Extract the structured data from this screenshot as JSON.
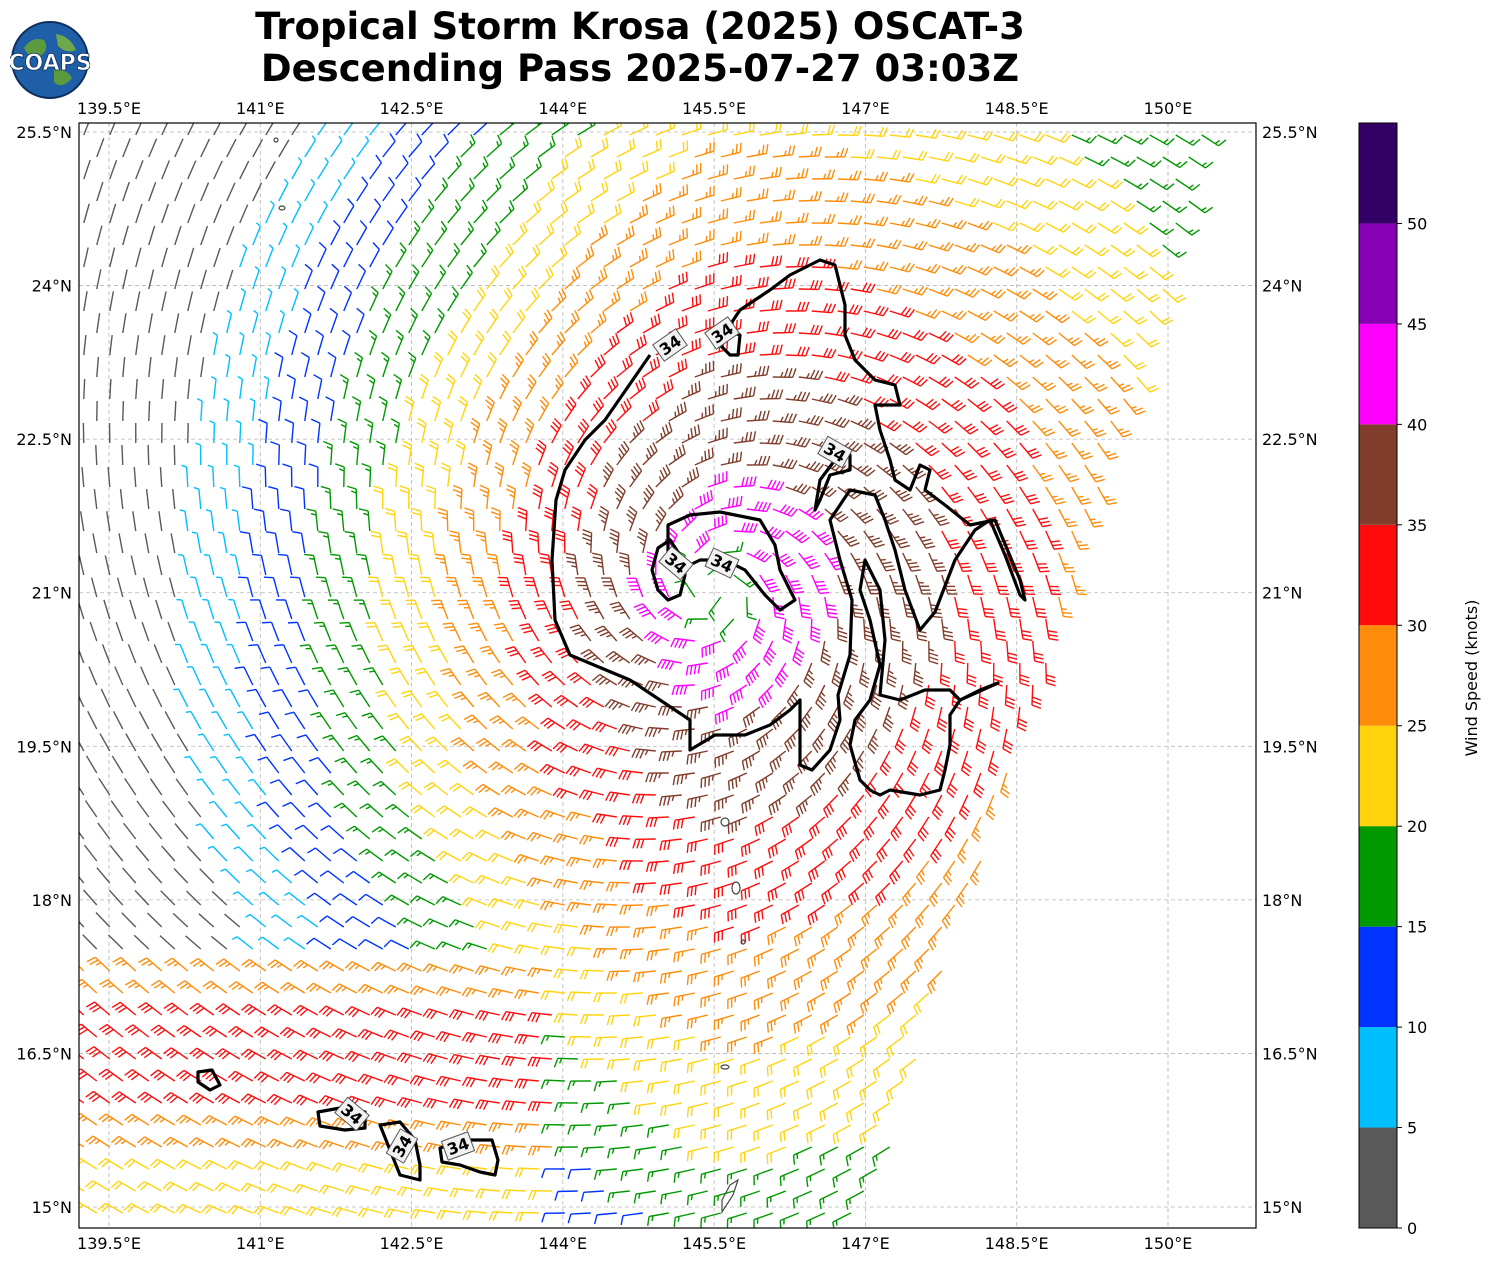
{
  "title": {
    "line1": "Tropical Storm Krosa (2025) OSCAT-3",
    "line2": "Descending Pass 2025-07-27 03:03Z"
  },
  "logo": {
    "text": "COAPS",
    "icon": "globe-icon"
  },
  "map": {
    "lon_ticks": [
      "139.5°E",
      "141°E",
      "142.5°E",
      "144°E",
      "145.5°E",
      "147°E",
      "148.5°E",
      "150°E"
    ],
    "lat_ticks": [
      "25.5°N",
      "24°N",
      "22.5°N",
      "21°N",
      "19.5°N",
      "18°N",
      "16.5°N",
      "15°N"
    ],
    "lon_range": [
      139.2,
      150.7
    ],
    "lat_range": [
      14.8,
      25.6
    ],
    "contour_label": "34",
    "contour_level_kt": 34,
    "gridlines": true
  },
  "colorbar": {
    "label": "Wind Speed (knots)",
    "ticks": [
      "0",
      "5",
      "10",
      "15",
      "20",
      "25",
      "30",
      "35",
      "40",
      "45",
      "50"
    ],
    "bins": [
      {
        "min": 0,
        "max": 5,
        "color": "#595959"
      },
      {
        "min": 5,
        "max": 10,
        "color": "#00bfff"
      },
      {
        "min": 10,
        "max": 15,
        "color": "#0033ff"
      },
      {
        "min": 15,
        "max": 20,
        "color": "#009900"
      },
      {
        "min": 20,
        "max": 25,
        "color": "#ffd40f"
      },
      {
        "min": 25,
        "max": 30,
        "color": "#ff8c0a"
      },
      {
        "min": 30,
        "max": 35,
        "color": "#ff0d0d"
      },
      {
        "min": 35,
        "max": 40,
        "color": "#803d2b"
      },
      {
        "min": 40,
        "max": 45,
        "color": "#ff00ff"
      },
      {
        "min": 45,
        "max": 50,
        "color": "#8800b3"
      },
      {
        "min": 50,
        "max": 55,
        "color": "#330066"
      }
    ]
  }
}
